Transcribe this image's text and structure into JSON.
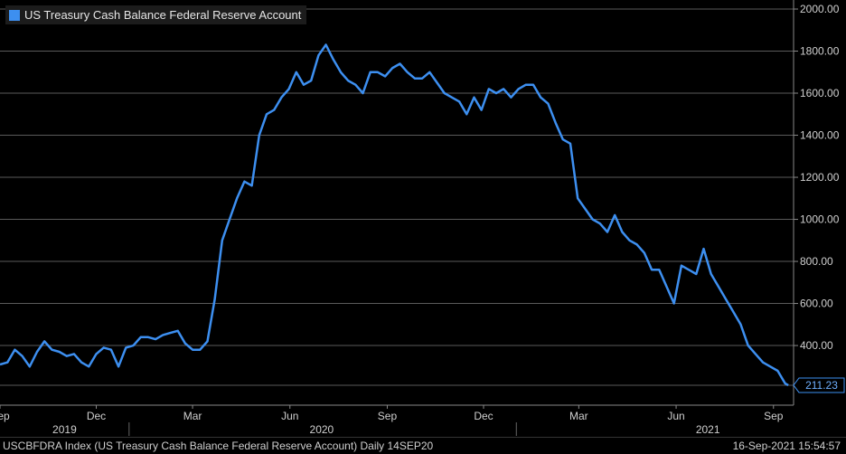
{
  "chart_data": {
    "type": "line",
    "title": "",
    "legend": {
      "label": "US Treasury Cash Balance Federal Reserve Account",
      "position": "top-left"
    },
    "ylabel": "",
    "xlabel": "",
    "ylim": [
      211,
      2000
    ],
    "y_ticks": [
      "2000.00",
      "1800.00",
      "1600.00",
      "1400.00",
      "1200.00",
      "1000.00",
      "800.00",
      "600.00",
      "400.00"
    ],
    "y_tick_values": [
      2000,
      1800,
      1600,
      1400,
      1200,
      1000,
      800,
      600,
      400
    ],
    "x_month_ticks": [
      "Sep",
      "Dec",
      "Mar",
      "Jun",
      "Sep",
      "Dec",
      "Mar",
      "Jun",
      "Sep"
    ],
    "x_month_tick_dates": [
      "2019-09-01",
      "2019-12-01",
      "2020-03-01",
      "2020-06-01",
      "2020-09-01",
      "2020-12-01",
      "2021-03-01",
      "2021-06-01",
      "2021-09-01"
    ],
    "x_year_labels": [
      "2019",
      "2020",
      "2021"
    ],
    "x_year_label_dates": [
      "2019-11-01",
      "2020-07-01",
      "2021-07-01"
    ],
    "x_range": [
      "2019-09-01",
      "2021-09-20"
    ],
    "last_value_label": "211.23",
    "last_value": 211.23,
    "line_color": "#3d8ff0",
    "grid": true,
    "series": [
      {
        "name": "US Treasury Cash Balance Federal Reserve Account",
        "x": [
          "2019-09-01",
          "2019-09-08",
          "2019-09-15",
          "2019-09-22",
          "2019-09-29",
          "2019-10-06",
          "2019-10-13",
          "2019-10-20",
          "2019-10-27",
          "2019-11-03",
          "2019-11-10",
          "2019-11-17",
          "2019-11-24",
          "2019-12-01",
          "2019-12-08",
          "2019-12-15",
          "2019-12-22",
          "2019-12-29",
          "2020-01-05",
          "2020-01-12",
          "2020-01-19",
          "2020-01-26",
          "2020-02-02",
          "2020-02-09",
          "2020-02-16",
          "2020-02-23",
          "2020-03-01",
          "2020-03-08",
          "2020-03-15",
          "2020-03-22",
          "2020-03-29",
          "2020-04-05",
          "2020-04-12",
          "2020-04-19",
          "2020-04-26",
          "2020-05-03",
          "2020-05-10",
          "2020-05-17",
          "2020-05-24",
          "2020-05-31",
          "2020-06-07",
          "2020-06-14",
          "2020-06-21",
          "2020-06-28",
          "2020-07-05",
          "2020-07-12",
          "2020-07-19",
          "2020-07-26",
          "2020-08-02",
          "2020-08-09",
          "2020-08-16",
          "2020-08-23",
          "2020-08-30",
          "2020-09-06",
          "2020-09-13",
          "2020-09-20",
          "2020-09-27",
          "2020-10-04",
          "2020-10-11",
          "2020-10-18",
          "2020-10-25",
          "2020-11-01",
          "2020-11-08",
          "2020-11-15",
          "2020-11-22",
          "2020-11-29",
          "2020-12-06",
          "2020-12-13",
          "2020-12-20",
          "2020-12-27",
          "2021-01-03",
          "2021-01-10",
          "2021-01-17",
          "2021-01-24",
          "2021-01-31",
          "2021-02-07",
          "2021-02-14",
          "2021-02-21",
          "2021-02-28",
          "2021-03-07",
          "2021-03-14",
          "2021-03-21",
          "2021-03-28",
          "2021-04-04",
          "2021-04-11",
          "2021-04-18",
          "2021-04-25",
          "2021-05-02",
          "2021-05-09",
          "2021-05-16",
          "2021-05-23",
          "2021-05-30",
          "2021-06-06",
          "2021-06-13",
          "2021-06-20",
          "2021-06-27",
          "2021-07-04",
          "2021-07-11",
          "2021-07-18",
          "2021-07-25",
          "2021-08-01",
          "2021-08-08",
          "2021-08-15",
          "2021-08-22",
          "2021-08-29",
          "2021-09-05",
          "2021-09-12",
          "2021-09-15"
        ],
        "values": [
          310,
          320,
          380,
          350,
          300,
          370,
          420,
          380,
          370,
          350,
          360,
          320,
          300,
          360,
          390,
          380,
          300,
          390,
          400,
          440,
          440,
          430,
          450,
          460,
          470,
          410,
          380,
          380,
          420,
          620,
          900,
          1000,
          1100,
          1180,
          1160,
          1400,
          1500,
          1520,
          1580,
          1620,
          1700,
          1640,
          1660,
          1780,
          1830,
          1760,
          1700,
          1660,
          1640,
          1600,
          1700,
          1700,
          1680,
          1720,
          1740,
          1700,
          1670,
          1670,
          1700,
          1650,
          1600,
          1580,
          1560,
          1500,
          1580,
          1520,
          1620,
          1600,
          1620,
          1580,
          1620,
          1640,
          1640,
          1580,
          1550,
          1460,
          1380,
          1360,
          1100,
          1050,
          1000,
          980,
          940,
          1020,
          940,
          900,
          880,
          840,
          760,
          760,
          680,
          600,
          780,
          760,
          740,
          860,
          740,
          680,
          620,
          560,
          500,
          400,
          360,
          320,
          300,
          280,
          220,
          211
        ]
      }
    ]
  },
  "footer": {
    "left": "USCBFDRA Index (US Treasury Cash Balance Federal Reserve Account)  Daily 14SEP20",
    "right": "16-Sep-2021 15:54:57"
  }
}
